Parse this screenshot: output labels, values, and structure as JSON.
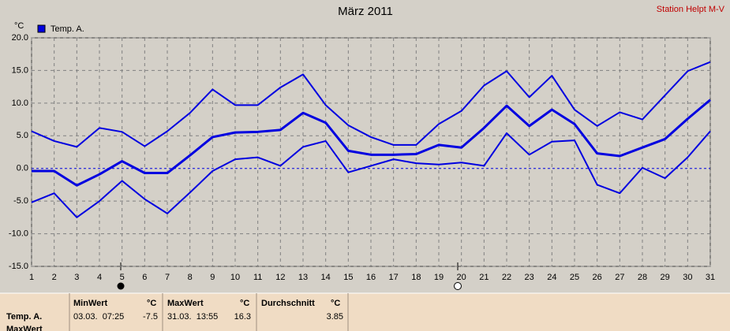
{
  "chart_data": {
    "type": "line",
    "title": "März 2011",
    "station": "Station Helpt M-V",
    "ylabel": "°C",
    "x": [
      1,
      2,
      3,
      4,
      5,
      6,
      7,
      8,
      9,
      10,
      11,
      12,
      13,
      14,
      15,
      16,
      17,
      18,
      19,
      20,
      21,
      22,
      23,
      24,
      25,
      26,
      27,
      28,
      29,
      30,
      31
    ],
    "xlim": [
      1,
      31
    ],
    "xticks": [
      1,
      2,
      3,
      4,
      5,
      6,
      7,
      8,
      9,
      10,
      11,
      12,
      13,
      14,
      15,
      16,
      17,
      18,
      19,
      20,
      21,
      22,
      23,
      24,
      25,
      26,
      27,
      28,
      29,
      30,
      31
    ],
    "ylim": [
      -15,
      20
    ],
    "yticks": [
      {
        "value": -15,
        "label": "-15.0"
      },
      {
        "value": -10,
        "label": "-10.0"
      },
      {
        "value": -5,
        "label": "-5.0"
      },
      {
        "value": 0,
        "label": "0.0"
      },
      {
        "value": 5,
        "label": "5.0"
      },
      {
        "value": 10,
        "label": "10.0"
      },
      {
        "value": 15,
        "label": "15.0"
      },
      {
        "value": 20,
        "label": "20.0"
      }
    ],
    "grid": true,
    "legend": "top-left",
    "series": [
      {
        "name": "Temp. A.",
        "color": "#0000e0",
        "values": [
          -0.4,
          -0.4,
          -2.6,
          -0.9,
          1.1,
          -0.7,
          -0.7,
          2.0,
          4.8,
          5.5,
          5.6,
          5.9,
          8.5,
          7.0,
          2.7,
          2.1,
          2.1,
          2.2,
          3.6,
          3.2,
          6.2,
          9.6,
          6.5,
          9.0,
          6.8,
          2.3,
          1.9,
          3.2,
          4.5,
          7.6,
          10.5
        ],
        "max": [
          5.7,
          4.2,
          3.3,
          6.2,
          5.6,
          3.4,
          5.7,
          8.5,
          12.1,
          9.7,
          9.7,
          12.4,
          14.4,
          9.7,
          6.6,
          4.8,
          3.6,
          3.6,
          6.8,
          8.8,
          12.7,
          14.9,
          10.9,
          14.2,
          9.0,
          6.5,
          8.6,
          7.5,
          11.2,
          14.9,
          16.3
        ],
        "min": [
          -5.2,
          -3.8,
          -7.5,
          -5.0,
          -1.9,
          -4.7,
          -6.9,
          -3.7,
          -0.4,
          1.4,
          1.7,
          0.4,
          3.3,
          4.2,
          -0.6,
          0.4,
          1.4,
          0.8,
          0.6,
          0.9,
          0.4,
          5.4,
          2.1,
          4.1,
          4.3,
          -2.5,
          -3.8,
          0.1,
          -1.5,
          1.7,
          5.7
        ]
      }
    ]
  },
  "table": {
    "headers": [
      "MinWert",
      "°C",
      "MaxWert",
      "°C",
      "Durchschnitt",
      "°C"
    ],
    "rows": [
      [
        "Temp. A.",
        "03.03.  07:25",
        "-7.5",
        "31.03.  13:55",
        "16.3",
        "3.85"
      ],
      [
        "MaxWert"
      ]
    ]
  }
}
